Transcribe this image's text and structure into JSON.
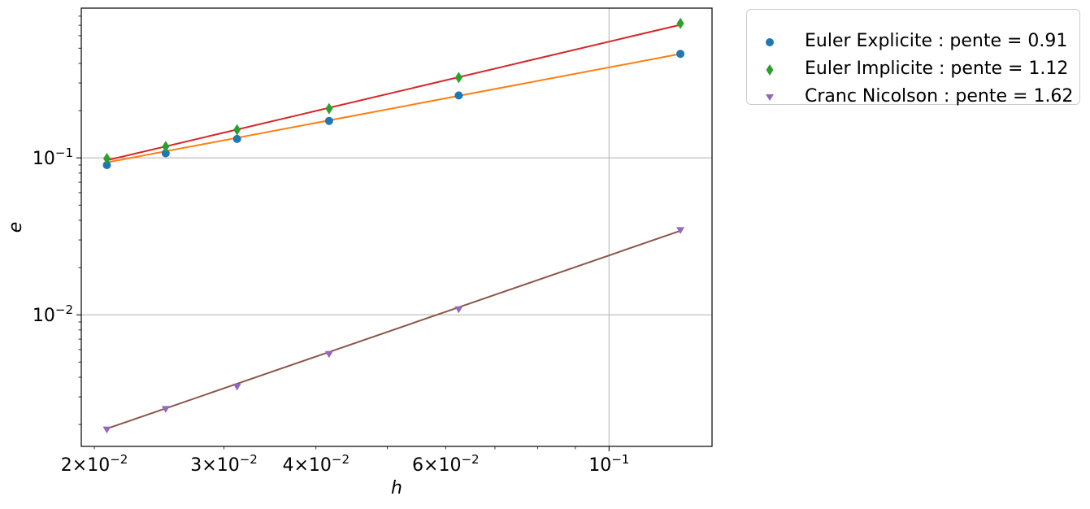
{
  "chart_data": {
    "type": "scatter",
    "title": "",
    "xlabel": "h",
    "ylabel": "e",
    "xscale": "log",
    "yscale": "log",
    "xlim": [
      0.0192,
      0.138
    ],
    "ylim": [
      0.00145,
      0.9
    ],
    "grid": "major",
    "legend": "outside upper right",
    "x_ticks": [
      {
        "value": 0.02,
        "mant": "2",
        "exp": "−2"
      },
      {
        "value": 0.03,
        "mant": "3",
        "exp": "−2"
      },
      {
        "value": 0.04,
        "mant": "4",
        "exp": "−2"
      },
      {
        "value": 0.06,
        "mant": "6",
        "exp": "−2"
      },
      {
        "value": 0.1,
        "mant": "",
        "exp": "−1"
      }
    ],
    "y_ticks": [
      {
        "value": 0.1,
        "exp": "−1"
      },
      {
        "value": 0.01,
        "exp": "−2"
      }
    ],
    "x": [
      0.0208,
      0.025,
      0.03125,
      0.04167,
      0.0625,
      0.125
    ],
    "series": [
      {
        "name": "Euler Explicite : pente = 0.91",
        "marker": "circle",
        "color": "#1f77b4",
        "values": [
          0.09,
          0.107,
          0.132,
          0.172,
          0.25,
          0.46
        ]
      },
      {
        "name": "Euler Implicite : pente = 1.12",
        "marker": "diamond",
        "color": "#2ca02c",
        "values": [
          0.099,
          0.118,
          0.151,
          0.206,
          0.325,
          0.72
        ]
      },
      {
        "name": "Cranc Nicolson : pente = 1.62",
        "marker": "triangle-down",
        "color": "#9467bd",
        "values": [
          0.00185,
          0.0025,
          0.00347,
          0.0056,
          0.0108,
          0.0345
        ]
      }
    ],
    "fit_lines": [
      {
        "color": "#ff7f0e",
        "values": [
          0.0935,
          0.46
        ]
      },
      {
        "color": "#d62728",
        "values": [
          0.0965,
          0.705
        ]
      },
      {
        "color": "#8c564b",
        "values": [
          0.00188,
          0.0343
        ]
      }
    ]
  }
}
